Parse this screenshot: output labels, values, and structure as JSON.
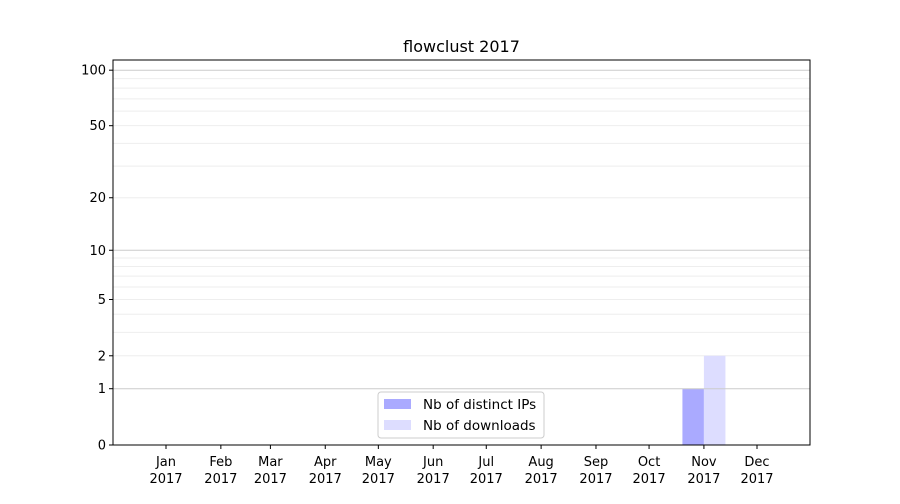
{
  "chart_data": {
    "type": "bar",
    "title": "flowclust 2017",
    "xlabel": "",
    "ylabel": "",
    "y_scale": "log10(1+y)",
    "ylim": [
      0,
      113
    ],
    "grid": "horizontal, major and minor",
    "legend_placement": "lower center",
    "categories": [
      "Jan\n2017",
      "Feb\n2017",
      "Mar\n2017",
      "Apr\n2017",
      "May\n2017",
      "Jun\n2017",
      "Jul\n2017",
      "Aug\n2017",
      "Sep\n2017",
      "Oct\n2017",
      "Nov\n2017",
      "Dec\n2017"
    ],
    "x_tick_labels": [
      {
        "month": "Jan",
        "year": "2017"
      },
      {
        "month": "Feb",
        "year": "2017"
      },
      {
        "month": "Mar",
        "year": "2017"
      },
      {
        "month": "Apr",
        "year": "2017"
      },
      {
        "month": "May",
        "year": "2017"
      },
      {
        "month": "Jun",
        "year": "2017"
      },
      {
        "month": "Jul",
        "year": "2017"
      },
      {
        "month": "Aug",
        "year": "2017"
      },
      {
        "month": "Sep",
        "year": "2017"
      },
      {
        "month": "Oct",
        "year": "2017"
      },
      {
        "month": "Nov",
        "year": "2017"
      },
      {
        "month": "Dec",
        "year": "2017"
      }
    ],
    "y_ticks": [
      0,
      1,
      2,
      5,
      10,
      20,
      50,
      100
    ],
    "series": [
      {
        "name": "Nb of distinct IPs",
        "color": "#aaaaff",
        "values": [
          0,
          0,
          0,
          0,
          0,
          0,
          0,
          0,
          0,
          0,
          1,
          0
        ]
      },
      {
        "name": "Nb of downloads",
        "color": "#ddddff",
        "values": [
          0,
          0,
          0,
          0,
          0,
          0,
          0,
          0,
          0,
          0,
          2,
          0
        ]
      }
    ]
  }
}
